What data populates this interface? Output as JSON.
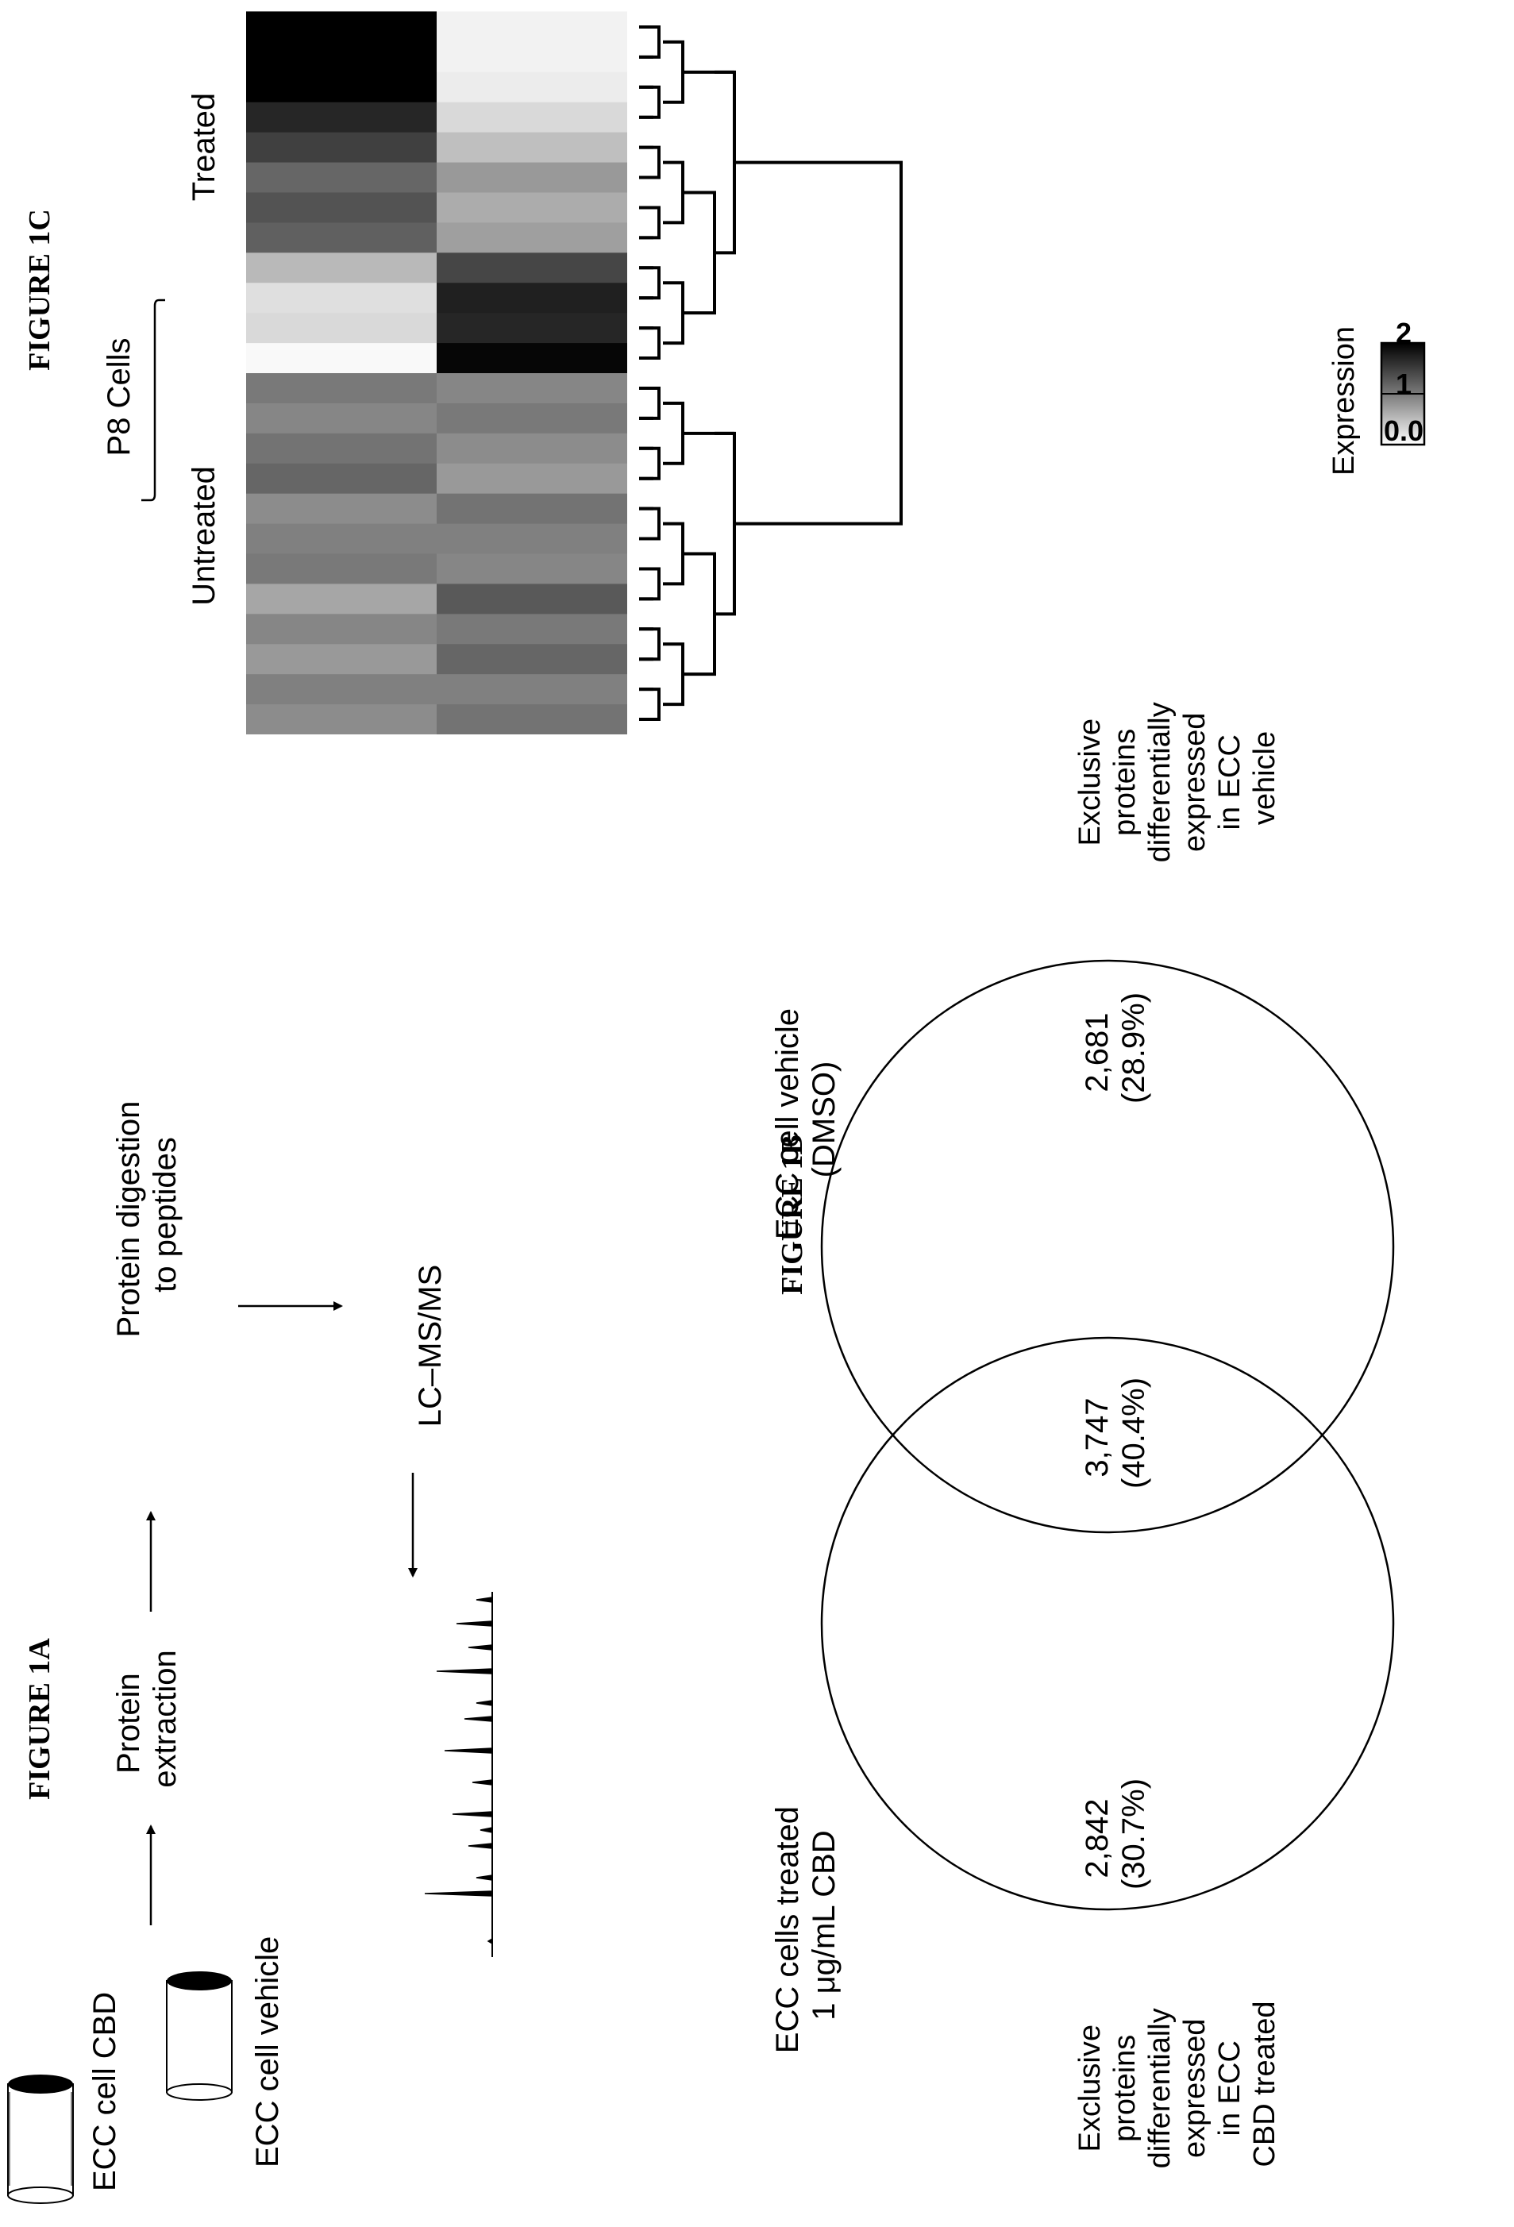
{
  "figure_1a": {
    "title": "FIGURE 1A",
    "dish_cbd_label": "ECC cell CBD",
    "dish_vehicle_label": "ECC cell vehicle",
    "step_extraction": [
      "Protein",
      "extraction"
    ],
    "step_digestion": [
      "Protein digestion",
      "to peptides"
    ],
    "step_lcms": "LC–MS/MS"
  },
  "figure_1b": {
    "title": "FIGURE 1B",
    "left_set_label": [
      "ECC cells treated",
      "1 μg/mL CBD"
    ],
    "right_set_label": [
      "ECC cell vehicle",
      "(DMSO)"
    ],
    "left_count": "2,842",
    "left_pct": "(30.7%)",
    "overlap_count": "3,747",
    "overlap_pct": "(40.4%)",
    "right_count": "2,681",
    "right_pct": "(28.9%)",
    "left_caption": [
      "Exclusive",
      "proteins",
      "differentially",
      "expressed",
      "in ECC",
      "CBD treated"
    ],
    "right_caption": [
      "Exclusive",
      "proteins",
      "differentially",
      "expressed",
      "in ECC",
      "vehicle"
    ]
  },
  "figure_1c": {
    "title": "FIGURE 1C",
    "group_label": "P8 Cells",
    "column_labels": [
      "Untreated",
      "Treated"
    ],
    "legend_title": "Expression",
    "legend_ticks": [
      "0.0",
      "1",
      "2"
    ],
    "legend_colors": [
      "#ffffff",
      "#7a7a7a",
      "#000000"
    ],
    "expression": {
      "untreated": [
        0.9,
        1.0,
        0.8,
        0.95,
        0.7,
        1.05,
        1.0,
        0.9,
        1.2,
        1.1,
        0.95,
        1.05,
        0.05,
        0.3,
        0.25,
        0.55,
        1.25,
        1.35,
        1.2,
        1.5,
        1.7,
        2.0,
        2.0,
        2.0
      ],
      "treated": [
        1.1,
        1.0,
        1.2,
        1.05,
        1.3,
        0.95,
        1.0,
        1.1,
        0.8,
        0.9,
        1.05,
        0.95,
        1.95,
        1.7,
        1.75,
        1.45,
        0.75,
        0.65,
        0.8,
        0.5,
        0.3,
        0.15,
        0.1,
        0.1
      ]
    }
  }
}
